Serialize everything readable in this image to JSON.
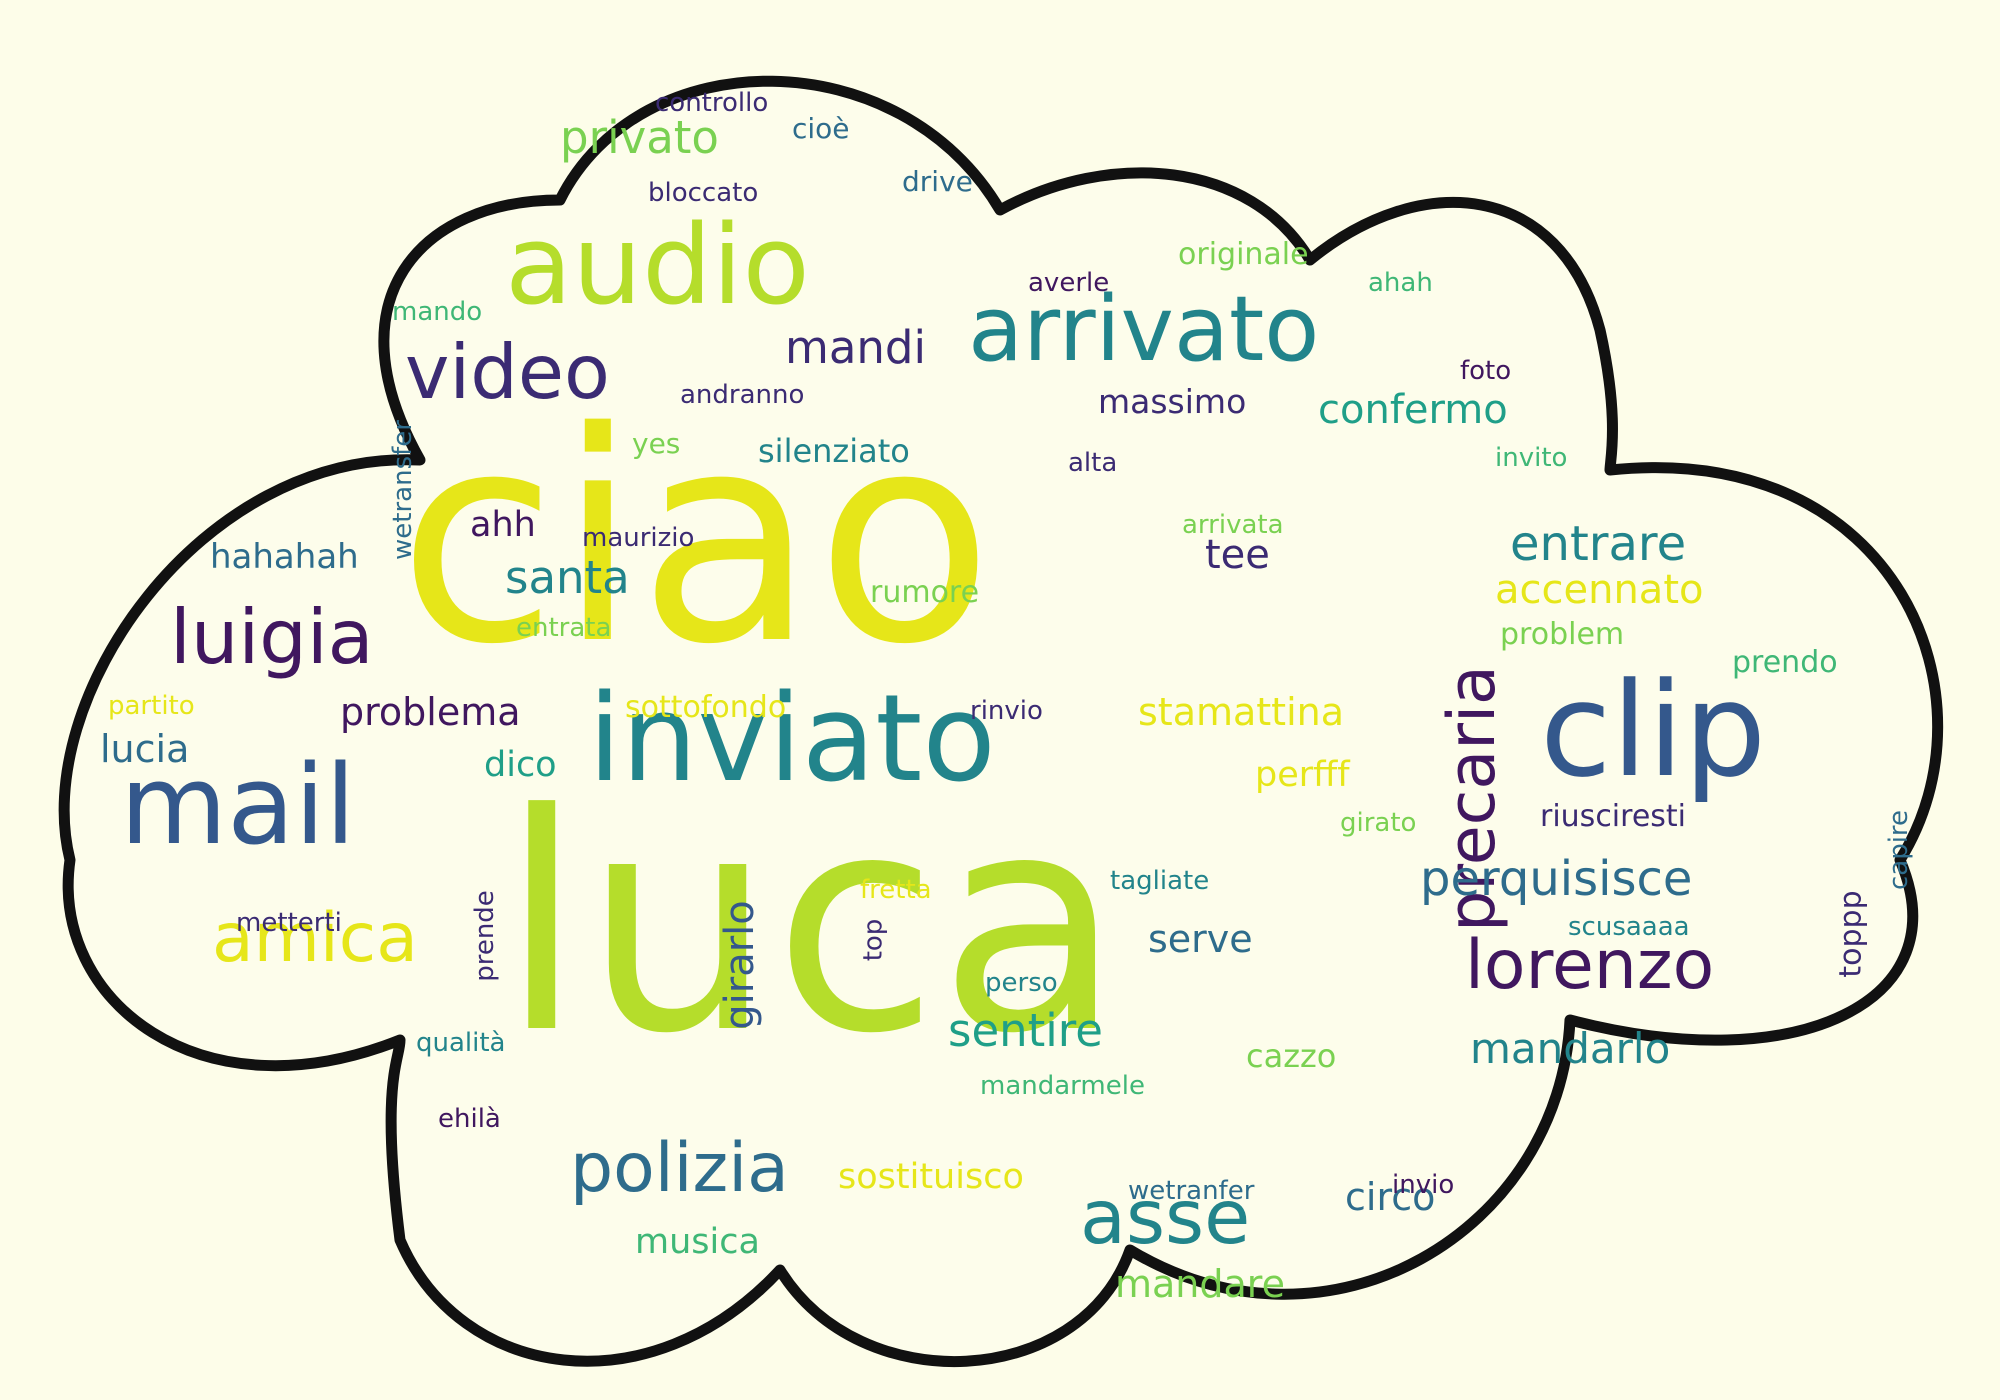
{
  "palette": {
    "background": "#fdfde9",
    "cloud_fill": "#fdfdeb",
    "cloud_outline": "#111111",
    "violet": "#40175f",
    "indigo": "#3b2b73",
    "blue": "#34588c",
    "teal_blue": "#2e6c8c",
    "teal": "#22848b",
    "sea_green": "#1f9f88",
    "green": "#3fb776",
    "light_green": "#7ad151",
    "lime": "#b5dd2b",
    "yellow": "#e6e619"
  },
  "words": [
    {
      "id": "ciao",
      "text": "ciao",
      "color": "yellow",
      "vertical": false
    },
    {
      "id": "luca",
      "text": "luca",
      "color": "lime",
      "vertical": false
    },
    {
      "id": "inviato",
      "text": "inviato",
      "color": "teal",
      "vertical": false
    },
    {
      "id": "audio",
      "text": "audio",
      "color": "lime",
      "vertical": false
    },
    {
      "id": "arrivato",
      "text": "arrivato",
      "color": "teal",
      "vertical": false
    },
    {
      "id": "clip",
      "text": "clip",
      "color": "blue",
      "vertical": false
    },
    {
      "id": "mail",
      "text": "mail",
      "color": "blue",
      "vertical": false
    },
    {
      "id": "video",
      "text": "video",
      "color": "indigo",
      "vertical": false
    },
    {
      "id": "precaria",
      "text": "precaria",
      "color": "violet",
      "vertical": true
    },
    {
      "id": "luigia",
      "text": "luigia",
      "color": "violet",
      "vertical": false
    },
    {
      "id": "amica",
      "text": "amica",
      "color": "yellow",
      "vertical": false
    },
    {
      "id": "polizia",
      "text": "polizia",
      "color": "teal_blue",
      "vertical": false
    },
    {
      "id": "asse",
      "text": "asse",
      "color": "teal",
      "vertical": false
    },
    {
      "id": "lorenzo",
      "text": "lorenzo",
      "color": "violet",
      "vertical": false
    },
    {
      "id": "perquisisce",
      "text": "perquisisce",
      "color": "teal_blue",
      "vertical": false
    },
    {
      "id": "mandarlo",
      "text": "mandarlo",
      "color": "teal",
      "vertical": false
    },
    {
      "id": "privato",
      "text": "privato",
      "color": "light_green",
      "vertical": false
    },
    {
      "id": "mandi",
      "text": "mandi",
      "color": "indigo",
      "vertical": false
    },
    {
      "id": "confermo",
      "text": "confermo",
      "color": "sea_green",
      "vertical": false
    },
    {
      "id": "entrare",
      "text": "entrare",
      "color": "teal",
      "vertical": false
    },
    {
      "id": "accennato",
      "text": "accennato",
      "color": "yellow",
      "vertical": false
    },
    {
      "id": "santa",
      "text": "santa",
      "color": "teal",
      "vertical": false
    },
    {
      "id": "problema",
      "text": "problema",
      "color": "violet",
      "vertical": false
    },
    {
      "id": "stamattina",
      "text": "stamattina",
      "color": "yellow",
      "vertical": false
    },
    {
      "id": "sentire",
      "text": "sentire",
      "color": "sea_green",
      "vertical": false
    },
    {
      "id": "girarlo",
      "text": "girarlo",
      "color": "blue",
      "vertical": true
    },
    {
      "id": "sostituisco",
      "text": "sostituisco",
      "color": "yellow",
      "vertical": false
    },
    {
      "id": "musica",
      "text": "musica",
      "color": "green",
      "vertical": false
    },
    {
      "id": "mandare",
      "text": "mandare",
      "color": "light_green",
      "vertical": false
    },
    {
      "id": "circo",
      "text": "circo",
      "color": "teal_blue",
      "vertical": false
    },
    {
      "id": "serve",
      "text": "serve",
      "color": "teal_blue",
      "vertical": false
    },
    {
      "id": "hahahah",
      "text": "hahahah",
      "color": "teal_blue",
      "vertical": false
    },
    {
      "id": "lucia",
      "text": "lucia",
      "color": "teal_blue",
      "vertical": false
    },
    {
      "id": "ahh",
      "text": "ahh",
      "color": "violet",
      "vertical": false
    },
    {
      "id": "tee",
      "text": "tee",
      "color": "indigo",
      "vertical": false
    },
    {
      "id": "massimo",
      "text": "massimo",
      "color": "indigo",
      "vertical": false
    },
    {
      "id": "silenziato",
      "text": "silenziato",
      "color": "teal",
      "vertical": false
    },
    {
      "id": "dico",
      "text": "dico",
      "color": "sea_green",
      "vertical": false
    },
    {
      "id": "perfff",
      "text": "perfff",
      "color": "yellow",
      "vertical": false
    },
    {
      "id": "cazzo",
      "text": "cazzo",
      "color": "light_green",
      "vertical": false
    },
    {
      "id": "rumore",
      "text": "rumore",
      "color": "light_green",
      "vertical": false
    },
    {
      "id": "prendo",
      "text": "prendo",
      "color": "green",
      "vertical": false
    },
    {
      "id": "problem",
      "text": "problem",
      "color": "light_green",
      "vertical": false
    },
    {
      "id": "sottofondo",
      "text": "sottofondo",
      "color": "yellow",
      "vertical": false
    },
    {
      "id": "riuscirestti",
      "text": "riusciresti",
      "color": "indigo",
      "vertical": false
    },
    {
      "id": "toppp",
      "text": "toppp",
      "color": "indigo",
      "vertical": true
    },
    {
      "id": "originale",
      "text": "originale",
      "color": "light_green",
      "vertical": false
    },
    {
      "id": "controllo",
      "text": "controllo",
      "color": "indigo",
      "vertical": false
    },
    {
      "id": "cioe",
      "text": "cioè",
      "color": "teal_blue",
      "vertical": false
    },
    {
      "id": "bloccato",
      "text": "bloccato",
      "color": "indigo",
      "vertical": false
    },
    {
      "id": "drive",
      "text": "drive",
      "color": "teal_blue",
      "vertical": false
    },
    {
      "id": "averle",
      "text": "averle",
      "color": "violet",
      "vertical": false
    },
    {
      "id": "ahah",
      "text": "ahah",
      "color": "green",
      "vertical": false
    },
    {
      "id": "mando",
      "text": "mando",
      "color": "green",
      "vertical": false
    },
    {
      "id": "foto",
      "text": "foto",
      "color": "violet",
      "vertical": false
    },
    {
      "id": "andranno",
      "text": "andranno",
      "color": "indigo",
      "vertical": false
    },
    {
      "id": "wetransfer",
      "text": "wetransfer",
      "color": "teal_blue",
      "vertical": true
    },
    {
      "id": "yes",
      "text": "yes",
      "color": "light_green",
      "vertical": false
    },
    {
      "id": "alta",
      "text": "alta",
      "color": "indigo",
      "vertical": false
    },
    {
      "id": "invito",
      "text": "invito",
      "color": "green",
      "vertical": false
    },
    {
      "id": "maurizio",
      "text": "maurizio",
      "color": "indigo",
      "vertical": false
    },
    {
      "id": "arrivata",
      "text": "arrivata",
      "color": "light_green",
      "vertical": false
    },
    {
      "id": "entrata",
      "text": "entrata",
      "color": "light_green",
      "vertical": false
    },
    {
      "id": "partito",
      "text": "partito",
      "color": "yellow",
      "vertical": false
    },
    {
      "id": "rinvio",
      "text": "rinvio",
      "color": "indigo",
      "vertical": false
    },
    {
      "id": "capire",
      "text": "capire",
      "color": "teal_blue",
      "vertical": true
    },
    {
      "id": "girato",
      "text": "girato",
      "color": "light_green",
      "vertical": false
    },
    {
      "id": "fretta",
      "text": "fretta",
      "color": "yellow",
      "vertical": false
    },
    {
      "id": "tagliate",
      "text": "tagliate",
      "color": "teal",
      "vertical": false
    },
    {
      "id": "prende",
      "text": "prende",
      "color": "indigo",
      "vertical": true
    },
    {
      "id": "metterti",
      "text": "metterti",
      "color": "indigo",
      "vertical": false
    },
    {
      "id": "top",
      "text": "top",
      "color": "indigo",
      "vertical": true
    },
    {
      "id": "scusaaaa",
      "text": "scusaaaa",
      "color": "teal",
      "vertical": false
    },
    {
      "id": "perso",
      "text": "perso",
      "color": "teal",
      "vertical": false
    },
    {
      "id": "qualita",
      "text": "qualità",
      "color": "teal",
      "vertical": false
    },
    {
      "id": "mandarmele",
      "text": "mandarmele",
      "color": "green",
      "vertical": false
    },
    {
      "id": "ehila",
      "text": "ehilà",
      "color": "violet",
      "vertical": false
    },
    {
      "id": "wetranfer",
      "text": "wetranfer",
      "color": "teal_blue",
      "vertical": false
    },
    {
      "id": "invio",
      "text": "invio",
      "color": "violet",
      "vertical": false
    }
  ]
}
